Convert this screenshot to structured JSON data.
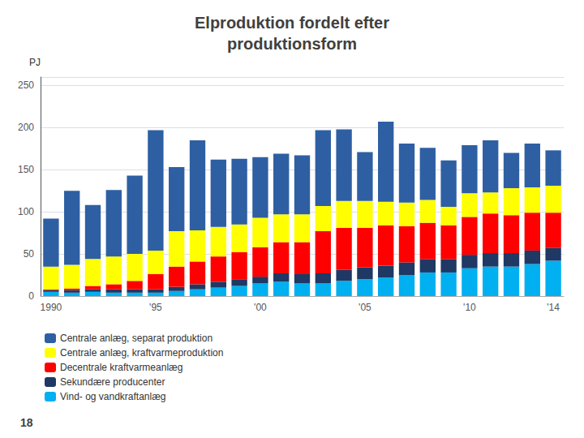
{
  "chart_data": {
    "type": "bar",
    "title": "Elproduktion fordelt efter\nproduktionsform",
    "y_label": "PJ",
    "annotations": [
      "18"
    ],
    "categories": [
      "1990",
      null,
      null,
      null,
      null,
      "'95",
      null,
      null,
      null,
      null,
      "'00",
      null,
      null,
      null,
      null,
      "'05",
      null,
      null,
      null,
      null,
      "'10",
      null,
      null,
      null,
      "'14"
    ],
    "series": [
      {
        "name": "Vind- og vandkraftanlæg",
        "color": "#00B0F0",
        "values": [
          5,
          4,
          5,
          4,
          4,
          4,
          6,
          8,
          10,
          12,
          15,
          17,
          15,
          15,
          18,
          20,
          22,
          25,
          28,
          28,
          33,
          35,
          35,
          38,
          42
        ]
      },
      {
        "name": "Sekundære producenter",
        "color": "#1F3864",
        "values": [
          2,
          3,
          3,
          4,
          4,
          4,
          5,
          6,
          7,
          8,
          8,
          10,
          11,
          12,
          13,
          14,
          14,
          15,
          16,
          16,
          16,
          16,
          16,
          16,
          15
        ]
      },
      {
        "name": "Decentrale kraftvarmeanlæg",
        "color": "#FF0000",
        "values": [
          1,
          2,
          4,
          6,
          10,
          18,
          24,
          27,
          30,
          32,
          35,
          37,
          38,
          50,
          50,
          47,
          48,
          43,
          43,
          40,
          45,
          47,
          45,
          45,
          42
        ]
      },
      {
        "name": "Centrale anlæg, kraftvarmeproduktion",
        "color": "#FFFF00",
        "values": [
          27,
          28,
          32,
          33,
          32,
          28,
          42,
          37,
          35,
          33,
          35,
          33,
          33,
          30,
          32,
          32,
          28,
          28,
          27,
          22,
          28,
          25,
          32,
          30,
          32
        ]
      },
      {
        "name": "Centrale anlæg, separat produktion",
        "color": "#2E5FA3",
        "values": [
          57,
          88,
          64,
          79,
          93,
          143,
          76,
          107,
          80,
          78,
          72,
          72,
          70,
          90,
          85,
          58,
          95,
          70,
          62,
          55,
          57,
          62,
          42,
          52,
          42
        ]
      }
    ],
    "stacked": true,
    "ylim": [
      0,
      260
    ],
    "yticks": [
      0,
      50,
      100,
      150,
      200,
      250
    ],
    "grid": true,
    "legend": "lower left"
  }
}
